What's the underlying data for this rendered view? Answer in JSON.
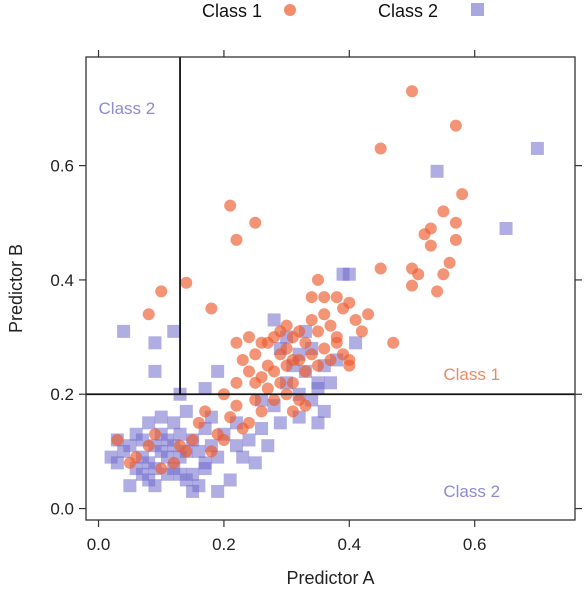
{
  "chart_data": {
    "type": "scatter",
    "xlabel": "Predictor A",
    "ylabel": "Predictor B",
    "xlim": [
      -0.02,
      0.76
    ],
    "ylim": [
      -0.02,
      0.79
    ],
    "x_ticks": [
      0.0,
      0.2,
      0.4,
      0.6
    ],
    "x_tick_labels": [
      "0.0",
      "0.2",
      "0.4",
      "0.6"
    ],
    "y_ticks": [
      0.0,
      0.2,
      0.4,
      0.6
    ],
    "y_tick_labels": [
      "0.0",
      "0.2",
      "0.4",
      "0.6"
    ],
    "grid": false,
    "legend_position": "top",
    "decision_lines": {
      "vertical_x": 0.13,
      "horizontal_y": 0.2
    },
    "region_labels": [
      {
        "text": "Class 2",
        "x": 0.0,
        "y": 0.69,
        "color": "#8f8ad6"
      },
      {
        "text": "Class 1",
        "x": 0.55,
        "y": 0.225,
        "color": "#ef8a5c"
      },
      {
        "text": "Class 2",
        "x": 0.55,
        "y": 0.02,
        "color": "#8f8ad6"
      }
    ],
    "series": [
      {
        "name": "Class 1",
        "marker": "circle",
        "color": "#ee5b2c",
        "points": [
          [
            0.05,
            0.08
          ],
          [
            0.08,
            0.34
          ],
          [
            0.1,
            0.38
          ],
          [
            0.14,
            0.395
          ],
          [
            0.18,
            0.35
          ],
          [
            0.21,
            0.53
          ],
          [
            0.22,
            0.47
          ],
          [
            0.25,
            0.5
          ],
          [
            0.22,
            0.29
          ],
          [
            0.24,
            0.3
          ],
          [
            0.26,
            0.29
          ],
          [
            0.28,
            0.3
          ],
          [
            0.2,
            0.2
          ],
          [
            0.22,
            0.22
          ],
          [
            0.23,
            0.26
          ],
          [
            0.24,
            0.24
          ],
          [
            0.25,
            0.22
          ],
          [
            0.26,
            0.23
          ],
          [
            0.27,
            0.25
          ],
          [
            0.28,
            0.24
          ],
          [
            0.29,
            0.27
          ],
          [
            0.3,
            0.28
          ],
          [
            0.31,
            0.3
          ],
          [
            0.32,
            0.31
          ],
          [
            0.33,
            0.29
          ],
          [
            0.34,
            0.33
          ],
          [
            0.35,
            0.31
          ],
          [
            0.36,
            0.34
          ],
          [
            0.37,
            0.32
          ],
          [
            0.38,
            0.37
          ],
          [
            0.39,
            0.35
          ],
          [
            0.4,
            0.36
          ],
          [
            0.41,
            0.33
          ],
          [
            0.42,
            0.31
          ],
          [
            0.43,
            0.34
          ],
          [
            0.3,
            0.25
          ],
          [
            0.31,
            0.22
          ],
          [
            0.32,
            0.26
          ],
          [
            0.33,
            0.24
          ],
          [
            0.34,
            0.27
          ],
          [
            0.35,
            0.25
          ],
          [
            0.36,
            0.28
          ],
          [
            0.37,
            0.26
          ],
          [
            0.38,
            0.29
          ],
          [
            0.39,
            0.27
          ],
          [
            0.4,
            0.25
          ],
          [
            0.27,
            0.21
          ],
          [
            0.28,
            0.19
          ],
          [
            0.29,
            0.22
          ],
          [
            0.3,
            0.2
          ],
          [
            0.31,
            0.17
          ],
          [
            0.32,
            0.19
          ],
          [
            0.26,
            0.17
          ],
          [
            0.25,
            0.19
          ],
          [
            0.24,
            0.15
          ],
          [
            0.23,
            0.14
          ],
          [
            0.22,
            0.18
          ],
          [
            0.21,
            0.16
          ],
          [
            0.2,
            0.12
          ],
          [
            0.19,
            0.13
          ],
          [
            0.18,
            0.1
          ],
          [
            0.17,
            0.17
          ],
          [
            0.16,
            0.15
          ],
          [
            0.15,
            0.12
          ],
          [
            0.14,
            0.1
          ],
          [
            0.13,
            0.11
          ],
          [
            0.12,
            0.08
          ],
          [
            0.1,
            0.07
          ],
          [
            0.09,
            0.13
          ],
          [
            0.08,
            0.11
          ],
          [
            0.06,
            0.09
          ],
          [
            0.03,
            0.12
          ],
          [
            0.45,
            0.42
          ],
          [
            0.47,
            0.29
          ],
          [
            0.5,
            0.39
          ],
          [
            0.5,
            0.42
          ],
          [
            0.51,
            0.41
          ],
          [
            0.52,
            0.48
          ],
          [
            0.53,
            0.49
          ],
          [
            0.53,
            0.46
          ],
          [
            0.54,
            0.38
          ],
          [
            0.55,
            0.52
          ],
          [
            0.55,
            0.41
          ],
          [
            0.56,
            0.43
          ],
          [
            0.57,
            0.47
          ],
          [
            0.57,
            0.5
          ],
          [
            0.58,
            0.55
          ],
          [
            0.45,
            0.63
          ],
          [
            0.5,
            0.73
          ],
          [
            0.57,
            0.67
          ],
          [
            0.34,
            0.37
          ],
          [
            0.35,
            0.4
          ],
          [
            0.36,
            0.37
          ],
          [
            0.38,
            0.3
          ],
          [
            0.4,
            0.26
          ],
          [
            0.33,
            0.18
          ],
          [
            0.27,
            0.29
          ],
          [
            0.25,
            0.27
          ],
          [
            0.29,
            0.31
          ],
          [
            0.3,
            0.32
          ],
          [
            0.31,
            0.26
          ]
        ]
      },
      {
        "name": "Class 2",
        "marker": "square",
        "color": "#6f6acc",
        "points": [
          [
            0.04,
            0.31
          ],
          [
            0.09,
            0.29
          ],
          [
            0.09,
            0.24
          ],
          [
            0.12,
            0.31
          ],
          [
            0.13,
            0.2
          ],
          [
            0.17,
            0.21
          ],
          [
            0.19,
            0.24
          ],
          [
            0.02,
            0.09
          ],
          [
            0.03,
            0.12
          ],
          [
            0.03,
            0.08
          ],
          [
            0.04,
            0.1
          ],
          [
            0.05,
            0.04
          ],
          [
            0.05,
            0.11
          ],
          [
            0.06,
            0.13
          ],
          [
            0.06,
            0.07
          ],
          [
            0.07,
            0.06
          ],
          [
            0.07,
            0.09
          ],
          [
            0.07,
            0.12
          ],
          [
            0.08,
            0.08
          ],
          [
            0.08,
            0.15
          ],
          [
            0.08,
            0.05
          ],
          [
            0.09,
            0.11
          ],
          [
            0.09,
            0.07
          ],
          [
            0.09,
            0.04
          ],
          [
            0.1,
            0.1
          ],
          [
            0.1,
            0.13
          ],
          [
            0.1,
            0.16
          ],
          [
            0.11,
            0.09
          ],
          [
            0.11,
            0.06
          ],
          [
            0.11,
            0.12
          ],
          [
            0.12,
            0.11
          ],
          [
            0.12,
            0.15
          ],
          [
            0.12,
            0.07
          ],
          [
            0.13,
            0.09
          ],
          [
            0.13,
            0.13
          ],
          [
            0.14,
            0.1
          ],
          [
            0.14,
            0.17
          ],
          [
            0.15,
            0.06
          ],
          [
            0.15,
            0.12
          ],
          [
            0.16,
            0.1
          ],
          [
            0.16,
            0.04
          ],
          [
            0.17,
            0.08
          ],
          [
            0.17,
            0.14
          ],
          [
            0.18,
            0.11
          ],
          [
            0.18,
            0.16
          ],
          [
            0.19,
            0.09
          ],
          [
            0.2,
            0.13
          ],
          [
            0.21,
            0.05
          ],
          [
            0.22,
            0.11
          ],
          [
            0.22,
            0.15
          ],
          [
            0.23,
            0.09
          ],
          [
            0.24,
            0.12
          ],
          [
            0.25,
            0.08
          ],
          [
            0.26,
            0.14
          ],
          [
            0.27,
            0.11
          ],
          [
            0.28,
            0.18
          ],
          [
            0.29,
            0.15
          ],
          [
            0.3,
            0.22
          ],
          [
            0.31,
            0.25
          ],
          [
            0.32,
            0.2
          ],
          [
            0.33,
            0.24
          ],
          [
            0.34,
            0.19
          ],
          [
            0.35,
            0.21
          ],
          [
            0.36,
            0.17
          ],
          [
            0.28,
            0.33
          ],
          [
            0.29,
            0.28
          ],
          [
            0.3,
            0.3
          ],
          [
            0.32,
            0.27
          ],
          [
            0.33,
            0.31
          ],
          [
            0.34,
            0.28
          ],
          [
            0.35,
            0.22
          ],
          [
            0.36,
            0.25
          ],
          [
            0.37,
            0.22
          ],
          [
            0.38,
            0.26
          ],
          [
            0.39,
            0.41
          ],
          [
            0.4,
            0.41
          ],
          [
            0.41,
            0.29
          ],
          [
            0.32,
            0.16
          ],
          [
            0.35,
            0.15
          ],
          [
            0.54,
            0.59
          ],
          [
            0.65,
            0.49
          ],
          [
            0.7,
            0.63
          ],
          [
            0.15,
            0.03
          ],
          [
            0.17,
            0.07
          ],
          [
            0.14,
            0.05
          ],
          [
            0.19,
            0.03
          ],
          [
            0.13,
            0.06
          ],
          [
            0.26,
            0.19
          ]
        ]
      }
    ]
  }
}
